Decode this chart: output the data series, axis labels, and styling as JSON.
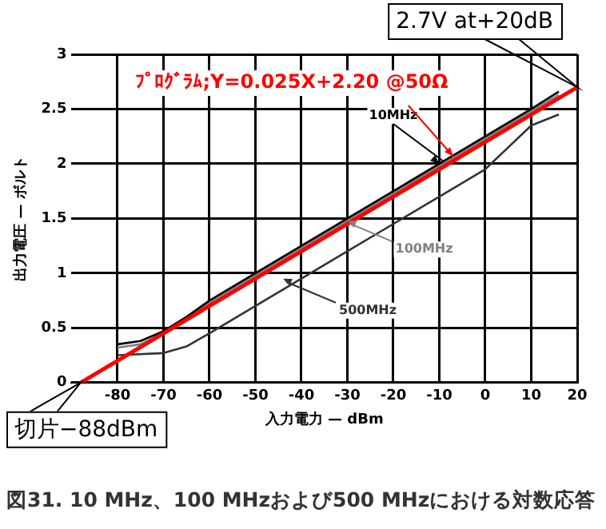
{
  "chart_data": {
    "type": "line",
    "title": "図31. 10 MHz、100 MHzおよび500 MHzにおける対数応答",
    "xlabel": "入力電力 — dBm",
    "ylabel": "出力電圧 — ボルト",
    "xlim": [
      -90,
      20
    ],
    "xticks": [
      -80,
      -70,
      -60,
      -50,
      -40,
      -30,
      -20,
      -10,
      0,
      10,
      20
    ],
    "ylim": [
      0,
      3
    ],
    "yticks": [
      0,
      0.5,
      1,
      1.5,
      2,
      2.5,
      3
    ],
    "grid": true,
    "legend": false,
    "marker": "none",
    "line_style": "solid",
    "series": [
      {
        "name": "10MHz",
        "color": "#000000",
        "x": [
          -80,
          -75,
          -70,
          -65,
          -60,
          -50,
          -30,
          -10,
          10,
          16
        ],
        "values": [
          0.35,
          0.38,
          0.47,
          0.6,
          0.75,
          1.0,
          1.5,
          2.0,
          2.5,
          2.66
        ]
      },
      {
        "name": "100MHz",
        "color": "#808080",
        "x": [
          -80,
          -75,
          -70,
          -65,
          -60,
          -50,
          -30,
          -10,
          10,
          16
        ],
        "values": [
          0.32,
          0.35,
          0.45,
          0.58,
          0.73,
          0.98,
          1.48,
          1.98,
          2.48,
          2.63
        ]
      },
      {
        "name": "500MHz",
        "color": "#333333",
        "x": [
          -80,
          -70,
          -65,
          -60,
          -50,
          -40,
          -30,
          -20,
          -10,
          0,
          5,
          10,
          16
        ],
        "values": [
          0.25,
          0.27,
          0.33,
          0.45,
          0.7,
          0.95,
          1.2,
          1.45,
          1.7,
          1.95,
          2.15,
          2.35,
          2.45
        ]
      },
      {
        "color": "#ff0000",
        "x": [
          -88,
          20
        ],
        "values": [
          0,
          2.7
        ]
      }
    ],
    "annotations": [
      {
        "text": "2.7V at+20dB",
        "x": 20,
        "y": 2.7
      },
      {
        "text": "切片−88dBm",
        "x": -88,
        "y": 0
      },
      {
        "text": "ﾌﾟﾛｸﾞﾗﾑ;Y=0.025X+2.20 @50Ω",
        "x": -7,
        "y": 2.025
      }
    ]
  }
}
